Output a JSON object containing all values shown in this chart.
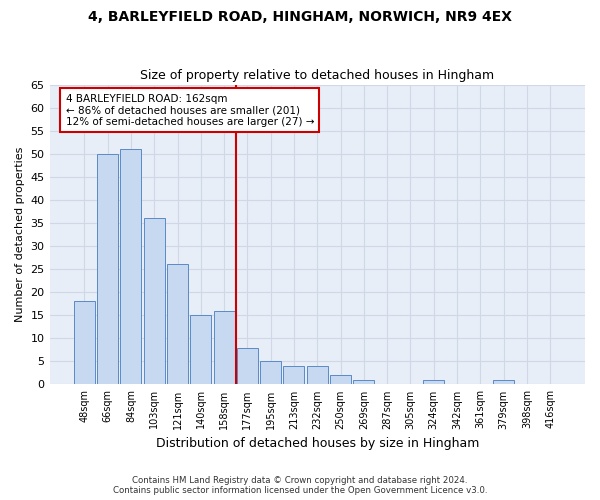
{
  "title1": "4, BARLEYFIELD ROAD, HINGHAM, NORWICH, NR9 4EX",
  "title2": "Size of property relative to detached houses in Hingham",
  "xlabel": "Distribution of detached houses by size in Hingham",
  "ylabel": "Number of detached properties",
  "footer1": "Contains HM Land Registry data © Crown copyright and database right 2024.",
  "footer2": "Contains public sector information licensed under the Open Government Licence v3.0.",
  "annotation_line1": "4 BARLEYFIELD ROAD: 162sqm",
  "annotation_line2": "← 86% of detached houses are smaller (201)",
  "annotation_line3": "12% of semi-detached houses are larger (27) →",
  "bar_values": [
    18,
    50,
    51,
    36,
    26,
    15,
    16,
    8,
    5,
    4,
    4,
    2,
    1,
    0,
    0,
    1,
    0,
    0,
    1,
    0,
    0
  ],
  "categories": [
    "48sqm",
    "66sqm",
    "84sqm",
    "103sqm",
    "121sqm",
    "140sqm",
    "158sqm",
    "177sqm",
    "195sqm",
    "213sqm",
    "232sqm",
    "250sqm",
    "269sqm",
    "287sqm",
    "305sqm",
    "324sqm",
    "342sqm",
    "361sqm",
    "379sqm",
    "398sqm",
    "416sqm"
  ],
  "bar_color": "#c6d9f0",
  "bar_edge_color": "#5a8ac6",
  "grid_color": "#d0d8e8",
  "background_color": "#e8eef7",
  "vline_x": 6.5,
  "vline_color": "#cc0000",
  "annotation_box_color": "#ffffff",
  "annotation_box_edge_color": "#cc0000",
  "ylim": [
    0,
    65
  ],
  "yticks": [
    0,
    5,
    10,
    15,
    20,
    25,
    30,
    35,
    40,
    45,
    50,
    55,
    60,
    65
  ]
}
